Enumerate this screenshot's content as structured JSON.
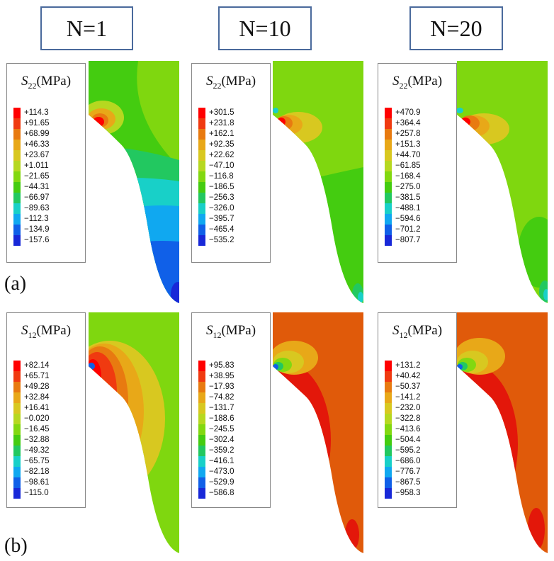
{
  "columns": [
    {
      "label": "N=1"
    },
    {
      "label": "N=10"
    },
    {
      "label": "N=20"
    }
  ],
  "row_labels": {
    "a": "(a)",
    "b": "(b)"
  },
  "legend_title": {
    "symbol": "S",
    "unit": "(MPa)"
  },
  "colors": [
    "#ff0000",
    "#f03a10",
    "#e87a10",
    "#e8a818",
    "#d8c820",
    "#b6d820",
    "#82d810",
    "#44cc10",
    "#22c860",
    "#18d0c8",
    "#10a8f0",
    "#1060e8",
    "#1828d8"
  ],
  "panels": {
    "a1": {
      "subscript": "22",
      "values": [
        "+114.3",
        "+91.65",
        "+68.99",
        "+46.33",
        "+23.67",
        "+1.011",
        "−21.65",
        "−44.31",
        "−66.97",
        "−89.63",
        "−112.3",
        "−134.9",
        "−157.6"
      ]
    },
    "a2": {
      "subscript": "22",
      "values": [
        "+301.5",
        "+231.8",
        "+162.1",
        "+92.35",
        "+22.62",
        "−47.10",
        "−116.8",
        "−186.5",
        "−256.3",
        "−326.0",
        "−395.7",
        "−465.4",
        "−535.2"
      ]
    },
    "a3": {
      "subscript": "22",
      "values": [
        "+470.9",
        "+364.4",
        "+257.8",
        "+151.3",
        "+44.70",
        "−61.85",
        "−168.4",
        "−275.0",
        "−381.5",
        "−488.1",
        "−594.6",
        "−701.2",
        "−807.7"
      ]
    },
    "b1": {
      "subscript": "12",
      "values": [
        "+82.14",
        "+65.71",
        "+49.28",
        "+32.84",
        "+16.41",
        "−0.020",
        "−16.45",
        "−32.88",
        "−49.32",
        "−65.75",
        "−82.18",
        "−98.61",
        "−115.0"
      ]
    },
    "b2": {
      "subscript": "12",
      "values": [
        "+95.83",
        "+38.95",
        "−17.93",
        "−74.82",
        "−131.7",
        "−188.6",
        "−245.5",
        "−302.4",
        "−359.2",
        "−416.1",
        "−473.0",
        "−529.9",
        "−586.8"
      ]
    },
    "b3": {
      "subscript": "12",
      "values": [
        "+131.2",
        "+40.42",
        "−50.37",
        "−141.2",
        "−232.0",
        "−322.8",
        "−413.6",
        "−504.4",
        "−595.2",
        "−686.0",
        "−776.7",
        "−867.5",
        "−958.3"
      ]
    }
  }
}
